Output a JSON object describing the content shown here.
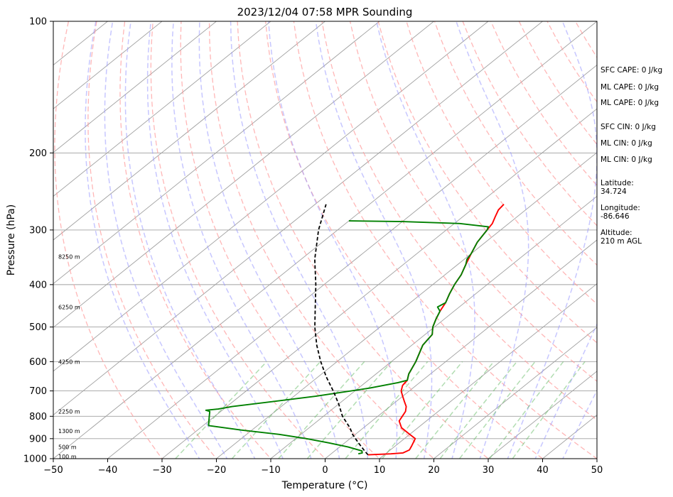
{
  "chart_data": {
    "type": "line",
    "title": "2023/12/04 07:58 MPR Sounding",
    "xlabel": "Temperature (°C)",
    "ylabel": "Pressure (hPa)",
    "xlim": [
      -50,
      50
    ],
    "ylim": [
      1000,
      100
    ],
    "y_scale": "log",
    "skew": true,
    "x_ticks": [
      -50,
      -40,
      -30,
      -20,
      -10,
      0,
      10,
      20,
      30,
      40,
      50
    ],
    "x_tick_labels": [
      "−50",
      "−40",
      "−30",
      "−20",
      "−10",
      "0",
      "10",
      "20",
      "30",
      "40",
      "50"
    ],
    "y_ticks": [
      1000,
      900,
      800,
      700,
      600,
      500,
      400,
      300,
      200,
      100
    ],
    "y_tick_labels": [
      "1000",
      "900",
      "800",
      "700",
      "600",
      "500",
      "400",
      "300",
      "200",
      "100"
    ],
    "grid": true,
    "colors": {
      "temperature": "#ff0000",
      "dewpoint": "#008000",
      "parcel": "#000000",
      "dry_adiabats": "#ff9999",
      "moist_adiabats": "#9999ff",
      "mixing_ratio": "#66bb66",
      "isotherms": "#a0a0a0"
    },
    "series": [
      {
        "key": "temperature",
        "values": [
          [
            980,
            7
          ],
          [
            975,
            11
          ],
          [
            970,
            13
          ],
          [
            955,
            13.5
          ],
          [
            935,
            13
          ],
          [
            900,
            12
          ],
          [
            880,
            10
          ],
          [
            850,
            7
          ],
          [
            820,
            5
          ],
          [
            800,
            4.5
          ],
          [
            780,
            4
          ],
          [
            760,
            3
          ],
          [
            740,
            1.5
          ],
          [
            720,
            0
          ],
          [
            700,
            -1.5
          ],
          [
            680,
            -2.5
          ],
          [
            662,
            -2.8
          ],
          [
            640,
            -4
          ],
          [
            600,
            -5.5
          ],
          [
            550,
            -8
          ],
          [
            520,
            -8.7
          ],
          [
            500,
            -10.3
          ],
          [
            480,
            -11.5
          ],
          [
            460,
            -12.6
          ],
          [
            440,
            -13.5
          ],
          [
            420,
            -14.8
          ],
          [
            400,
            -16
          ],
          [
            380,
            -17
          ],
          [
            360,
            -18.5
          ],
          [
            340,
            -20
          ],
          [
            320,
            -21.5
          ],
          [
            300,
            -22.5
          ],
          [
            290,
            -23
          ],
          [
            280,
            -24
          ],
          [
            270,
            -25
          ],
          [
            262,
            -25.3
          ]
        ]
      },
      {
        "key": "dewpoint",
        "values": [
          [
            975,
            5
          ],
          [
            970,
            5.5
          ],
          [
            960,
            5
          ],
          [
            940,
            1.5
          ],
          [
            920,
            -3
          ],
          [
            900,
            -8
          ],
          [
            880,
            -14
          ],
          [
            860,
            -22
          ],
          [
            840,
            -29
          ],
          [
            830,
            -29.5
          ],
          [
            820,
            -30
          ],
          [
            800,
            -31
          ],
          [
            780,
            -32
          ],
          [
            775,
            -33
          ],
          [
            770,
            -31
          ],
          [
            760,
            -29
          ],
          [
            720,
            -16
          ],
          [
            690,
            -8
          ],
          [
            670,
            -4
          ],
          [
            662,
            -2.8
          ],
          [
            640,
            -4
          ],
          [
            600,
            -5.5
          ],
          [
            550,
            -8
          ],
          [
            520,
            -8.7
          ],
          [
            500,
            -10.3
          ],
          [
            480,
            -11.5
          ],
          [
            460,
            -12.6
          ],
          [
            450,
            -14
          ],
          [
            440,
            -13.5
          ],
          [
            420,
            -14.8
          ],
          [
            400,
            -16
          ],
          [
            380,
            -17
          ],
          [
            360,
            -18.5
          ],
          [
            350,
            -19.5
          ],
          [
            340,
            -20
          ],
          [
            320,
            -21.5
          ],
          [
            300,
            -22.5
          ],
          [
            295,
            -23
          ],
          [
            290,
            -29
          ],
          [
            287,
            -40
          ],
          [
            286,
            -50
          ]
        ]
      },
      {
        "key": "parcel",
        "values": [
          [
            980,
            7
          ],
          [
            960,
            5.5
          ],
          [
            940,
            4
          ],
          [
            920,
            2.5
          ],
          [
            900,
            1
          ],
          [
            880,
            -0.5
          ],
          [
            850,
            -2.5
          ],
          [
            800,
            -6.5
          ],
          [
            750,
            -10
          ],
          [
            700,
            -14
          ],
          [
            650,
            -18.5
          ],
          [
            600,
            -23
          ],
          [
            550,
            -27.5
          ],
          [
            500,
            -32
          ],
          [
            450,
            -36.5
          ],
          [
            400,
            -41.5
          ],
          [
            350,
            -47.5
          ],
          [
            300,
            -53.5
          ],
          [
            262,
            -58
          ]
        ]
      }
    ],
    "height_labels": [
      "100 m",
      "500 m",
      "1300 m",
      "2250 m",
      "4250 m",
      "6250 m",
      "8250 m"
    ],
    "height_pressures": [
      988,
      940,
      865,
      780,
      600,
      450,
      345
    ],
    "stats": [
      "SFC CAPE: 0 J/kg",
      "ML CAPE: 0 J/kg",
      "ML CAPE: 0 J/kg",
      "SFC CIN: 0 J/kg",
      "ML CIN: 0 J/kg",
      "ML CIN: 0 J/kg"
    ],
    "location": [
      {
        "label": "Latitude:",
        "value": "34.724"
      },
      {
        "label": "Longitude:",
        "value": "-86.646"
      },
      {
        "label": "Altitude:",
        "value": "210 m AGL"
      }
    ]
  }
}
